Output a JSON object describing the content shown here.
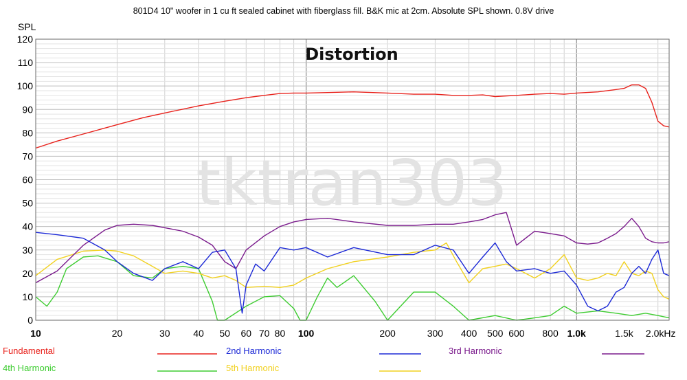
{
  "chart_data": {
    "type": "line",
    "title": "Distortion",
    "subtitle": "801D4 10\" woofer in 1 cu ft sealed cabinet with fiberglass fill. B&K mic at 2cm. Absolute SPL shown. 0.8V drive",
    "watermark": "tktran303",
    "ylabel": "SPL",
    "xlabel": "",
    "x_scale": "log",
    "xlim": [
      10,
      2200
    ],
    "ylim": [
      0,
      120
    ],
    "grid": true,
    "legend_position": "bottom",
    "y_ticks": [
      0,
      10,
      20,
      30,
      40,
      50,
      60,
      70,
      80,
      90,
      100,
      110,
      120
    ],
    "x_ticks": [
      {
        "value": 10,
        "label": "10"
      },
      {
        "value": 20,
        "label": "20"
      },
      {
        "value": 30,
        "label": "30"
      },
      {
        "value": 40,
        "label": "40"
      },
      {
        "value": 50,
        "label": "50"
      },
      {
        "value": 60,
        "label": "60"
      },
      {
        "value": 70,
        "label": "70"
      },
      {
        "value": 80,
        "label": "80"
      },
      {
        "value": 100,
        "label": "100"
      },
      {
        "value": 200,
        "label": "200"
      },
      {
        "value": 300,
        "label": "300"
      },
      {
        "value": 400,
        "label": "400"
      },
      {
        "value": 500,
        "label": "500"
      },
      {
        "value": 600,
        "label": "600"
      },
      {
        "value": 800,
        "label": "800"
      },
      {
        "value": 1000,
        "label": "1.0k"
      },
      {
        "value": 1500,
        "label": "1.5k"
      },
      {
        "value": 2000,
        "label": "2.0kHz"
      }
    ],
    "series": [
      {
        "name": "Fundamental",
        "color": "#e8211b",
        "x": [
          10,
          12,
          15,
          20,
          25,
          30,
          40,
          50,
          60,
          70,
          80,
          90,
          100,
          120,
          150,
          200,
          250,
          300,
          350,
          400,
          450,
          500,
          600,
          700,
          800,
          900,
          1000,
          1200,
          1400,
          1500,
          1600,
          1700,
          1800,
          1900,
          2000,
          2100,
          2200
        ],
        "y": [
          73.5,
          76.5,
          79.5,
          83.5,
          86.5,
          88.5,
          91.5,
          93.5,
          95,
          96,
          96.8,
          97,
          97,
          97.2,
          97.5,
          97,
          96.5,
          96.5,
          96,
          96,
          96.2,
          95.5,
          96,
          96.5,
          96.8,
          96.5,
          97,
          97.5,
          98.5,
          99,
          100.5,
          100.5,
          99,
          93,
          85,
          83,
          82.5
        ]
      },
      {
        "name": "2nd Harmonic",
        "color": "#1c29d6",
        "x": [
          10,
          12,
          15,
          18,
          20,
          23,
          27,
          30,
          35,
          40,
          45,
          50,
          55,
          58,
          60,
          65,
          70,
          80,
          90,
          100,
          120,
          150,
          200,
          250,
          300,
          350,
          400,
          450,
          500,
          550,
          600,
          700,
          800,
          900,
          1000,
          1100,
          1200,
          1300,
          1400,
          1500,
          1600,
          1700,
          1800,
          1900,
          2000,
          2100,
          2200
        ],
        "y": [
          37.5,
          36.5,
          35,
          30,
          25,
          20,
          17,
          22,
          25,
          22,
          29,
          30,
          22,
          3,
          15,
          24,
          21,
          31,
          30,
          31,
          27,
          31,
          28,
          28,
          32,
          30,
          20,
          27,
          33,
          25,
          21,
          22,
          20,
          21,
          15,
          6,
          4,
          6,
          12,
          14,
          20,
          23,
          20,
          26,
          30,
          20,
          19
        ]
      },
      {
        "name": "3rd Harmonic",
        "color": "#7a1a8c",
        "x": [
          10,
          12,
          15,
          18,
          20,
          23,
          27,
          30,
          35,
          40,
          45,
          50,
          55,
          60,
          70,
          80,
          90,
          100,
          120,
          150,
          200,
          250,
          300,
          350,
          400,
          450,
          500,
          550,
          600,
          700,
          800,
          900,
          1000,
          1100,
          1200,
          1300,
          1400,
          1500,
          1600,
          1700,
          1800,
          1900,
          2000,
          2100,
          2200
        ],
        "y": [
          16,
          21,
          32,
          38.5,
          40.5,
          41,
          40.5,
          39.5,
          38,
          35.5,
          32,
          25,
          22,
          30,
          36,
          40,
          42,
          43,
          43.5,
          42,
          40.5,
          40.5,
          41,
          41,
          42,
          43,
          45,
          46,
          32,
          38,
          37,
          36,
          33,
          32.5,
          33,
          35,
          37,
          40,
          43.5,
          40,
          35,
          33.5,
          33,
          33,
          33.5
        ]
      },
      {
        "name": "4th Harmonic",
        "color": "#3dcc30",
        "x": [
          10,
          11,
          12,
          13,
          15,
          17,
          20,
          23,
          27,
          30,
          35,
          40,
          45,
          47,
          50,
          60,
          70,
          80,
          90,
          95,
          100,
          110,
          120,
          130,
          150,
          180,
          200,
          250,
          300,
          350,
          400,
          500,
          600,
          700,
          800,
          900,
          1000,
          1200,
          1400,
          1600,
          1800,
          2000,
          2200
        ],
        "y": [
          10,
          6,
          12,
          22,
          27,
          27.5,
          25,
          19,
          18,
          22,
          23,
          22,
          8,
          0,
          0,
          6,
          10,
          10.5,
          5,
          0,
          0,
          10,
          18,
          14,
          19,
          8,
          0,
          12,
          12,
          6,
          0,
          2,
          0,
          1,
          2,
          6,
          3,
          4,
          3,
          2,
          3,
          2,
          1
        ]
      },
      {
        "name": "5th Harmonic",
        "color": "#f1d11f",
        "x": [
          10,
          12,
          15,
          18,
          20,
          23,
          27,
          30,
          35,
          40,
          45,
          50,
          55,
          60,
          70,
          80,
          90,
          100,
          120,
          150,
          200,
          250,
          300,
          330,
          360,
          400,
          450,
          500,
          550,
          600,
          700,
          800,
          900,
          1000,
          1100,
          1200,
          1300,
          1400,
          1500,
          1600,
          1700,
          1800,
          1900,
          2000,
          2100,
          2200
        ],
        "y": [
          19,
          26,
          29.5,
          30,
          29.5,
          27.5,
          23,
          20,
          21,
          20,
          18,
          19,
          17,
          14,
          14.5,
          14,
          15,
          18,
          22,
          25,
          27,
          29,
          30,
          33,
          25,
          16,
          22,
          23,
          24,
          22,
          18,
          22,
          28,
          18,
          17,
          18,
          20,
          19,
          25,
          20,
          19,
          21,
          20,
          13,
          10,
          9
        ]
      }
    ]
  }
}
